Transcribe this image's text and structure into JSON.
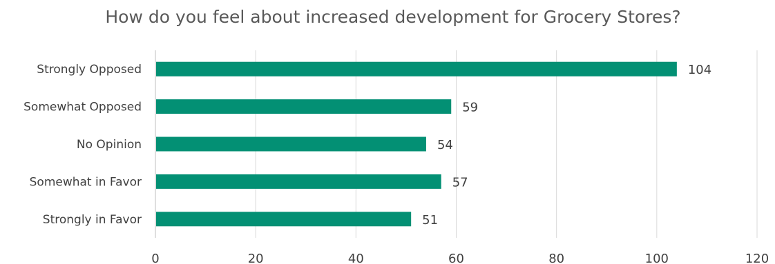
{
  "chart_data": {
    "type": "bar",
    "orientation": "horizontal",
    "title": "How do you feel about increased development for Grocery Stores?",
    "categories": [
      "Strongly Opposed",
      "Somewhat Opposed",
      "No Opinion",
      "Somewhat in Favor",
      "Strongly in Favor"
    ],
    "values": [
      104,
      59,
      54,
      57,
      51
    ],
    "xlim": [
      0,
      120
    ],
    "xticks": [
      0,
      20,
      40,
      60,
      80,
      100,
      120
    ],
    "xlabel": "",
    "ylabel": "",
    "grid": true,
    "legend": "none",
    "bar_color": "#039074",
    "data_labels": true
  }
}
